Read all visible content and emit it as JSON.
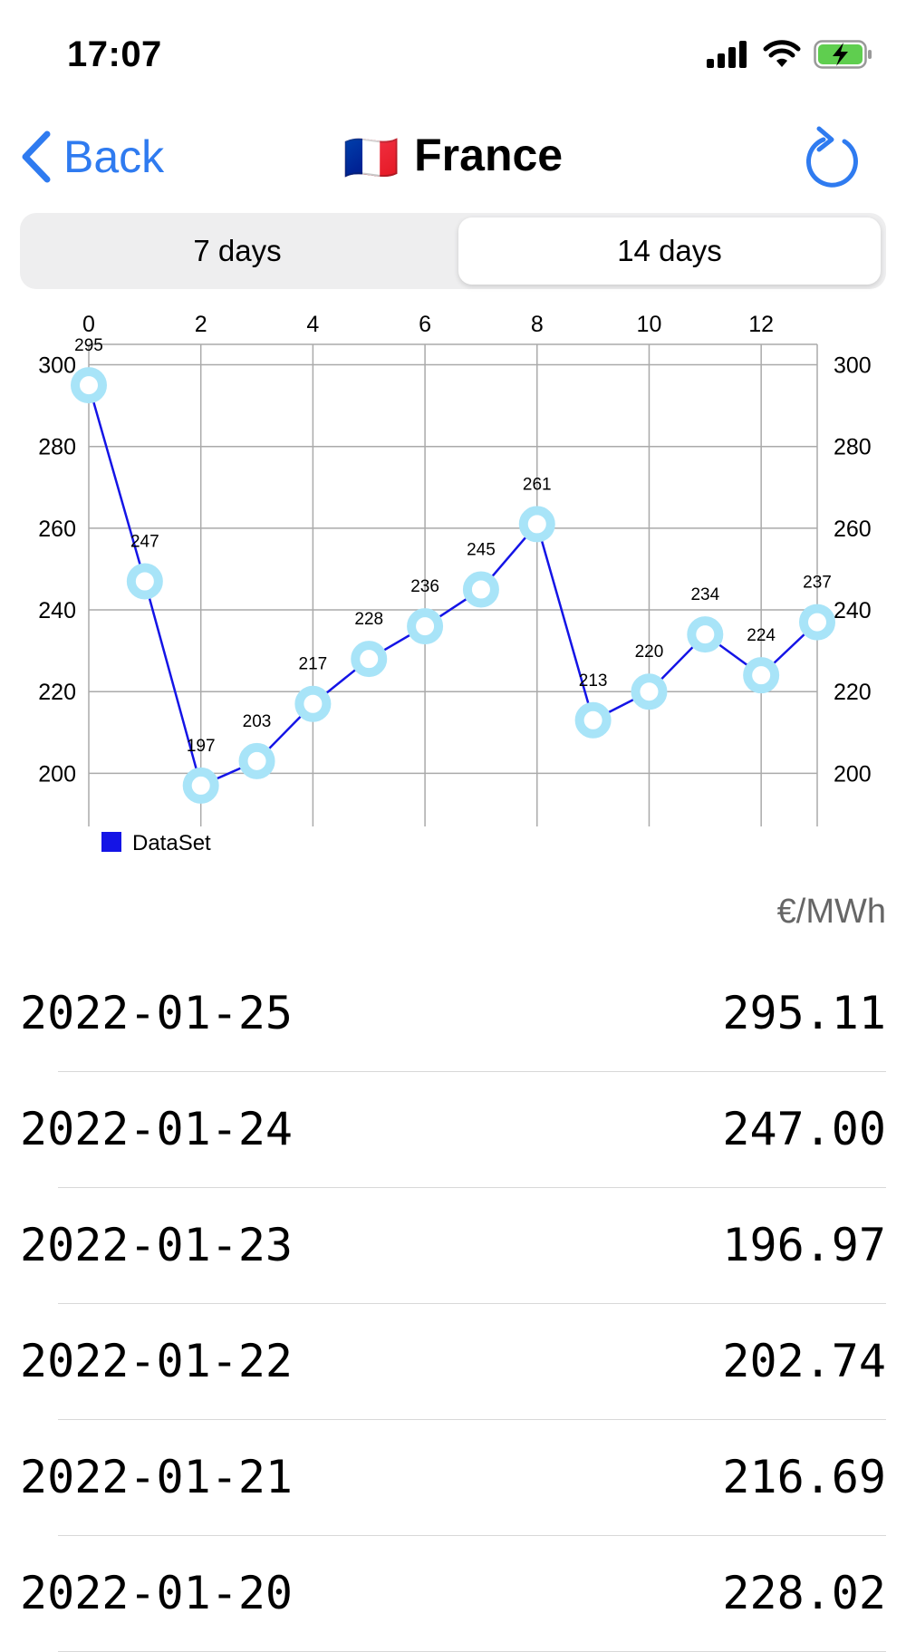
{
  "status": {
    "time": "17:07"
  },
  "nav": {
    "back_label": "Back",
    "flag": "🇫🇷",
    "title": "France"
  },
  "tabs": [
    {
      "label": "7 days",
      "selected": false
    },
    {
      "label": "14 days",
      "selected": true
    }
  ],
  "chart_data": {
    "type": "line",
    "x": [
      0,
      1,
      2,
      3,
      4,
      5,
      6,
      7,
      8,
      9,
      10,
      11,
      12,
      13
    ],
    "values": [
      295,
      247,
      197,
      203,
      217,
      228,
      236,
      245,
      261,
      213,
      220,
      234,
      224,
      237
    ],
    "x_ticks": [
      "0",
      "2",
      "4",
      "6",
      "8",
      "10",
      "12"
    ],
    "y_ticks": [
      "200",
      "220",
      "240",
      "260",
      "280",
      "300"
    ],
    "ylim": [
      187,
      305
    ],
    "xlim": [
      0,
      13
    ],
    "legend": [
      "DataSet"
    ],
    "line_color": "#1414e6",
    "marker_color": "#a8e4f8",
    "grid": true
  },
  "unit_label": "€/MWh",
  "rows": [
    {
      "date": "2022-01-25",
      "price": "295.11"
    },
    {
      "date": "2022-01-24",
      "price": "247.00"
    },
    {
      "date": "2022-01-23",
      "price": "196.97"
    },
    {
      "date": "2022-01-22",
      "price": "202.74"
    },
    {
      "date": "2022-01-21",
      "price": "216.69"
    },
    {
      "date": "2022-01-20",
      "price": "228.02"
    }
  ],
  "icons": {
    "back": "chevron-left-icon",
    "refresh": "refresh-icon",
    "signal": "cellular-signal-icon",
    "wifi": "wifi-icon",
    "battery": "battery-charging-icon"
  },
  "colors": {
    "accent": "#2f7bf0"
  }
}
